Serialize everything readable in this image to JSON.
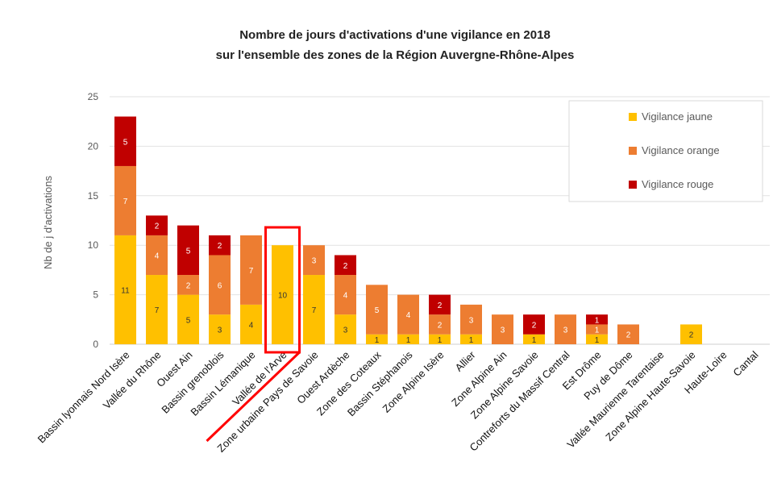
{
  "chart_data": {
    "type": "bar",
    "stacked": true,
    "title": "Nombre de jours d'activations d'une vigilance en 2018",
    "subtitle": "sur l'ensemble des zones de la Région Auvergne-Rhône-Alpes",
    "ylabel": "Nb de j d'activations",
    "xlabel": "",
    "ylim": [
      0,
      25
    ],
    "yticks": [
      0,
      5,
      10,
      15,
      20,
      25
    ],
    "grid": true,
    "legend_position": "top-right",
    "categories": [
      "Bassin lyonnais Nord Isère",
      "Vallée du Rhône",
      "Ouest Ain",
      "Bassin grenoblois",
      "Bassin Lémanique",
      "Vallée de l'Arve",
      "Zone urbaine Pays de Savoie",
      "Ouest Ardèche",
      "Zone des Coteaux",
      "Bassin Stéphanois",
      "Zone Alpine Isère",
      "Allier",
      "Zone Alpine Ain",
      "Zone Alpine Savoie",
      "Contreforts du Massif Central",
      "Est Drôme",
      "Puy de Dôme",
      "Vallée Maurienne Tarentaise",
      "Zone Alpine Haute-Savoie",
      "Haute-Loire",
      "Cantal"
    ],
    "series": [
      {
        "name": "Vigilance jaune",
        "color": "#FFC000",
        "values": [
          11,
          7,
          5,
          3,
          4,
          10,
          7,
          3,
          1,
          1,
          1,
          1,
          0,
          1,
          0,
          1,
          0,
          0,
          2,
          0,
          0
        ]
      },
      {
        "name": "Vigilance orange",
        "color": "#ED7D31",
        "values": [
          7,
          4,
          2,
          6,
          7,
          0,
          3,
          4,
          5,
          4,
          2,
          3,
          3,
          0,
          3,
          1,
          2,
          0,
          0,
          0,
          0
        ]
      },
      {
        "name": "Vigilance rouge",
        "color": "#C00000",
        "values": [
          5,
          2,
          5,
          2,
          0,
          0,
          0,
          2,
          0,
          0,
          2,
          0,
          0,
          2,
          0,
          1,
          0,
          0,
          0,
          0,
          0
        ]
      }
    ],
    "highlight_category": "Vallée de l'Arve",
    "highlight_color": "#FF0000"
  }
}
